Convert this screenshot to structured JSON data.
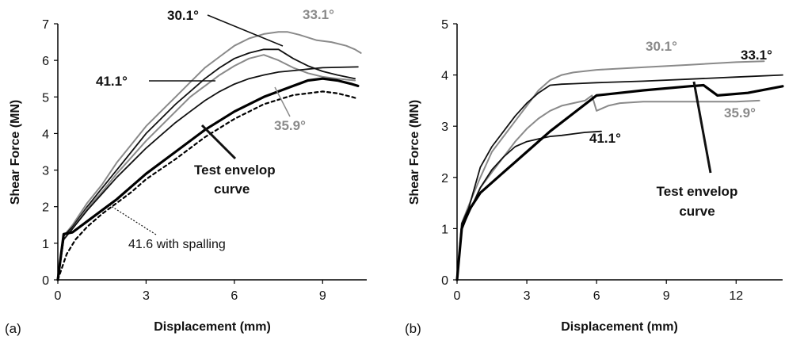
{
  "chart_data": [
    {
      "panel": "(a)",
      "type": "line",
      "xlabel": "Displacement (mm)",
      "ylabel": "Shear Force (MN)",
      "xlim": [
        0,
        10.5
      ],
      "ylim": [
        0,
        7
      ],
      "xticks": [
        0,
        3,
        6,
        9
      ],
      "yticks": [
        0,
        1,
        2,
        3,
        4,
        5,
        6,
        7
      ],
      "series": [
        {
          "name": "33.1°",
          "color": "#8a8a8a",
          "width": 2,
          "x": [
            0,
            0.2,
            0.5,
            1,
            1.5,
            2,
            2.5,
            3,
            3.5,
            4,
            4.5,
            5,
            5.5,
            6,
            6.5,
            7,
            7.5,
            7.8,
            8.2,
            8.8,
            9.3,
            9.8,
            10.1,
            10.3
          ],
          "y": [
            0,
            1.2,
            1.5,
            2.1,
            2.6,
            3.2,
            3.7,
            4.2,
            4.6,
            5.0,
            5.4,
            5.8,
            6.1,
            6.4,
            6.6,
            6.72,
            6.78,
            6.78,
            6.7,
            6.55,
            6.5,
            6.4,
            6.3,
            6.2
          ]
        },
        {
          "name": "30.1°",
          "color": "#111111",
          "width": 1.8,
          "x": [
            0,
            0.2,
            0.5,
            1,
            1.5,
            2,
            2.5,
            3,
            3.5,
            4,
            4.5,
            5,
            5.5,
            6,
            6.5,
            7,
            7.5,
            8,
            8.5,
            9,
            9.5,
            10.1
          ],
          "y": [
            0,
            1.2,
            1.45,
            2.0,
            2.5,
            3.0,
            3.5,
            4.0,
            4.4,
            4.8,
            5.15,
            5.5,
            5.8,
            6.05,
            6.2,
            6.3,
            6.3,
            6.05,
            5.85,
            5.7,
            5.6,
            5.5
          ]
        },
        {
          "name": "35.9°",
          "color": "#8a8a8a",
          "width": 2,
          "x": [
            0,
            0.2,
            0.5,
            1,
            1.5,
            2,
            2.5,
            3,
            3.5,
            4,
            4.5,
            5,
            5.5,
            6,
            6.5,
            7,
            7.5,
            8,
            8.5,
            9,
            9.5,
            10.1
          ],
          "y": [
            0,
            1.1,
            1.4,
            1.95,
            2.4,
            2.9,
            3.35,
            3.8,
            4.2,
            4.6,
            5.0,
            5.3,
            5.6,
            5.85,
            6.05,
            6.15,
            6.0,
            5.8,
            5.65,
            5.55,
            5.5,
            5.45
          ]
        },
        {
          "name": "41.1°",
          "color": "#111111",
          "width": 1.8,
          "x": [
            0,
            0.2,
            0.5,
            1,
            1.5,
            2,
            2.5,
            3,
            3.5,
            4,
            4.5,
            5,
            5.5,
            6,
            6.5,
            7,
            7.5,
            8,
            8.5,
            9,
            10.2
          ],
          "y": [
            0,
            1.1,
            1.4,
            1.9,
            2.35,
            2.8,
            3.2,
            3.6,
            3.95,
            4.3,
            4.6,
            4.9,
            5.15,
            5.35,
            5.5,
            5.6,
            5.68,
            5.72,
            5.76,
            5.8,
            5.82
          ]
        },
        {
          "name": "Test envelop curve",
          "color": "#000000",
          "width": 3.2,
          "x": [
            0,
            0.2,
            0.5,
            1,
            1.5,
            2,
            2.5,
            3,
            4,
            5,
            6,
            7,
            8,
            8.5,
            9,
            9.5,
            10,
            10.2
          ],
          "y": [
            0,
            1.25,
            1.3,
            1.6,
            1.9,
            2.2,
            2.55,
            2.9,
            3.5,
            4.1,
            4.6,
            5.0,
            5.3,
            5.45,
            5.5,
            5.45,
            5.35,
            5.3
          ]
        },
        {
          "name": "41.6 with spalling",
          "color": "#000000",
          "width": 2.2,
          "dash": "4,4",
          "x": [
            0,
            0.3,
            0.6,
            1,
            1.5,
            2,
            2.5,
            3,
            4,
            5,
            6,
            7,
            8,
            9,
            9.5,
            10,
            10.2
          ],
          "y": [
            0,
            0.7,
            1.1,
            1.45,
            1.8,
            2.1,
            2.4,
            2.75,
            3.3,
            3.9,
            4.4,
            4.8,
            5.05,
            5.15,
            5.1,
            5.0,
            4.95
          ]
        }
      ],
      "annotations": [
        {
          "text": "30.1°",
          "color": "#111111",
          "bold": true
        },
        {
          "text": "33.1°",
          "color": "#8a8a8a",
          "bold": true
        },
        {
          "text": "41.1°",
          "color": "#111111",
          "bold": true
        },
        {
          "text": "35.9°",
          "color": "#8a8a8a",
          "bold": true
        },
        {
          "text_lines": [
            "Test envelop",
            "curve"
          ],
          "color": "#111111",
          "bold": true
        },
        {
          "text": "41.6 with spalling",
          "color": "#111111",
          "bold": false
        }
      ]
    },
    {
      "panel": "(b)",
      "type": "line",
      "xlabel": "Displacement (mm)",
      "ylabel": "Shear Force (MN)",
      "xlim": [
        0,
        14
      ],
      "ylim": [
        0,
        5
      ],
      "xticks": [
        0,
        3,
        6,
        9,
        12
      ],
      "yticks": [
        0,
        1,
        2,
        3,
        4,
        5
      ],
      "series": [
        {
          "name": "30.1°",
          "color": "#8a8a8a",
          "width": 2,
          "x": [
            0,
            0.2,
            0.5,
            1,
            1.5,
            2,
            2.5,
            3,
            3.5,
            4,
            4.5,
            5,
            6,
            8,
            10,
            12,
            13.2
          ],
          "y": [
            0,
            1.1,
            1.45,
            2.0,
            2.5,
            2.8,
            3.1,
            3.4,
            3.7,
            3.9,
            4.0,
            4.05,
            4.1,
            4.15,
            4.2,
            4.25,
            4.27
          ]
        },
        {
          "name": "33.1°",
          "color": "#111111",
          "width": 1.8,
          "x": [
            0,
            0.2,
            0.5,
            1,
            1.5,
            2,
            2.5,
            3,
            3.5,
            4,
            4.5,
            5,
            6,
            8,
            10,
            12,
            14
          ],
          "y": [
            0,
            1.1,
            1.4,
            2.2,
            2.6,
            2.9,
            3.2,
            3.45,
            3.65,
            3.8,
            3.82,
            3.83,
            3.85,
            3.88,
            3.92,
            3.96,
            4.0
          ]
        },
        {
          "name": "35.9°",
          "color": "#8a8a8a",
          "width": 2,
          "x": [
            0,
            0.2,
            0.5,
            1,
            1.5,
            2,
            2.5,
            3,
            3.5,
            4,
            4.5,
            5,
            5.5,
            5.8,
            6,
            6.5,
            7,
            8,
            10,
            12,
            13
          ],
          "y": [
            0,
            1.0,
            1.3,
            1.8,
            2.1,
            2.4,
            2.7,
            2.95,
            3.15,
            3.3,
            3.4,
            3.45,
            3.5,
            3.6,
            3.3,
            3.4,
            3.45,
            3.48,
            3.48,
            3.48,
            3.5
          ]
        },
        {
          "name": "41.1°",
          "color": "#111111",
          "width": 1.8,
          "x": [
            0,
            0.2,
            0.5,
            1,
            1.5,
            2,
            2.5,
            3,
            3.5,
            4,
            4.5,
            5,
            5.5,
            6.2
          ],
          "y": [
            0,
            1.0,
            1.3,
            1.8,
            2.15,
            2.4,
            2.6,
            2.7,
            2.75,
            2.8,
            2.82,
            2.85,
            2.88,
            2.9
          ]
        },
        {
          "name": "Test envelop curve",
          "color": "#000000",
          "width": 3.2,
          "x": [
            0,
            0.2,
            0.5,
            1,
            1.5,
            2,
            2.5,
            3,
            4,
            5,
            6,
            8,
            10,
            10.6,
            11.2,
            12.5,
            14
          ],
          "y": [
            0,
            1.0,
            1.35,
            1.7,
            1.9,
            2.1,
            2.3,
            2.5,
            2.9,
            3.25,
            3.6,
            3.7,
            3.78,
            3.8,
            3.6,
            3.65,
            3.78
          ]
        }
      ],
      "annotations": [
        {
          "text": "30.1°",
          "color": "#8a8a8a",
          "bold": true
        },
        {
          "text": "33.1°",
          "color": "#111111",
          "bold": true
        },
        {
          "text": "35.9°",
          "color": "#8a8a8a",
          "bold": true
        },
        {
          "text": "41.1°",
          "color": "#111111",
          "bold": true
        },
        {
          "text_lines": [
            "Test envelop",
            "curve"
          ],
          "color": "#111111",
          "bold": true
        }
      ]
    }
  ]
}
